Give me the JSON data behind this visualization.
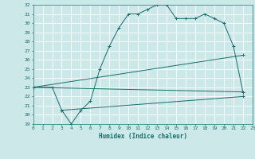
{
  "xlabel": "Humidex (Indice chaleur)",
  "background_color": "#cce8e8",
  "grid_color": "#ffffff",
  "line_color": "#1a6b6b",
  "xlim": [
    0,
    23
  ],
  "ylim": [
    19,
    32
  ],
  "xticks": [
    0,
    1,
    2,
    3,
    4,
    5,
    6,
    7,
    8,
    9,
    10,
    11,
    12,
    13,
    14,
    15,
    16,
    17,
    18,
    19,
    20,
    21,
    22,
    23
  ],
  "yticks": [
    19,
    20,
    21,
    22,
    23,
    24,
    25,
    26,
    27,
    28,
    29,
    30,
    31,
    32
  ],
  "series": [
    {
      "x": [
        0,
        2,
        3,
        4,
        5,
        6,
        7,
        8,
        9,
        10,
        11,
        12,
        13,
        14,
        15,
        16,
        17,
        18,
        19,
        20,
        21,
        22
      ],
      "y": [
        23,
        23,
        20.5,
        19,
        20.5,
        21.5,
        25,
        27.5,
        29.5,
        31,
        31,
        31.5,
        32,
        32,
        30.5,
        30.5,
        30.5,
        31,
        30.5,
        30,
        27.5,
        22.5
      ]
    },
    {
      "x": [
        0,
        22
      ],
      "y": [
        23,
        26.5
      ]
    },
    {
      "x": [
        0,
        22
      ],
      "y": [
        23,
        22.5
      ]
    },
    {
      "x": [
        3,
        22
      ],
      "y": [
        20.5,
        22
      ]
    }
  ]
}
